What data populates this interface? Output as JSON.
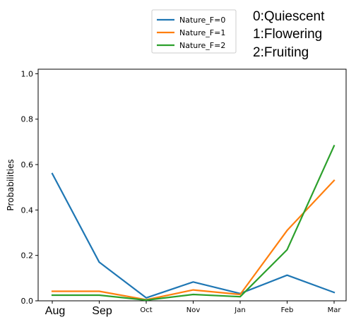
{
  "chart_data": {
    "type": "line",
    "title": "",
    "xlabel": "",
    "ylabel": "Probabilities",
    "categories": [
      "Aug",
      "Sep",
      "Oct",
      "Nov",
      "Jan",
      "Feb",
      "Mar"
    ],
    "ylim": [
      0,
      1.02
    ],
    "yticks": [
      "0.0",
      "0.2",
      "0.4",
      "0.6",
      "0.8",
      "1.0"
    ],
    "grid": false,
    "legend_position": "top-center, above the axes",
    "series": [
      {
        "name": "Nature_F=0",
        "color": "#1f77b4",
        "values": [
          0.56,
          0.17,
          0.013,
          0.083,
          0.032,
          0.113,
          0.037
        ]
      },
      {
        "name": "Nature_F=1",
        "color": "#ff7f0e",
        "values": [
          0.042,
          0.042,
          0.005,
          0.048,
          0.028,
          0.31,
          0.53
        ]
      },
      {
        "name": "Nature_F=2",
        "color": "#2ca02c",
        "values": [
          0.025,
          0.025,
          0.003,
          0.028,
          0.018,
          0.225,
          0.683
        ]
      }
    ],
    "annotations": [
      "0:Quiescent",
      "1:Flowering",
      "2:Fruiting"
    ]
  }
}
